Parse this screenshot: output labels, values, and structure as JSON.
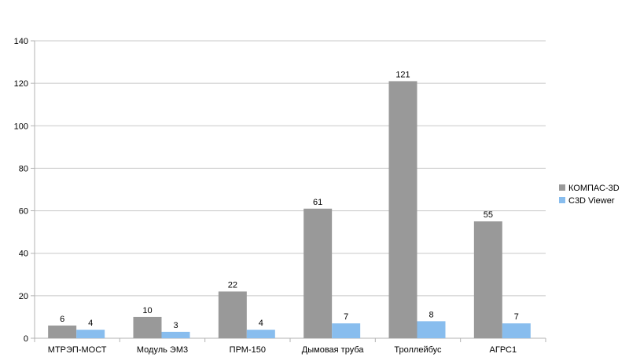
{
  "chart_data": {
    "type": "bar",
    "title": "",
    "xlabel": "",
    "ylabel": "",
    "categories": [
      "МТРЭП-МОСТ",
      "Модуль ЭМ3",
      "ПРМ-150",
      "Дымовая труба",
      "Троллейбус",
      "АГРС1"
    ],
    "series": [
      {
        "name": "КОМПАС-3D",
        "color": "#999999",
        "values": [
          6,
          10,
          22,
          61,
          121,
          55
        ]
      },
      {
        "name": "C3D Viewer",
        "color": "#88bdee",
        "values": [
          4,
          3,
          4,
          7,
          8,
          7
        ]
      }
    ],
    "ylim": [
      0,
      140
    ],
    "yticks": [
      0,
      20,
      40,
      60,
      80,
      100,
      120,
      140
    ],
    "grid": true,
    "legend_position": "right",
    "data_labels": true
  }
}
